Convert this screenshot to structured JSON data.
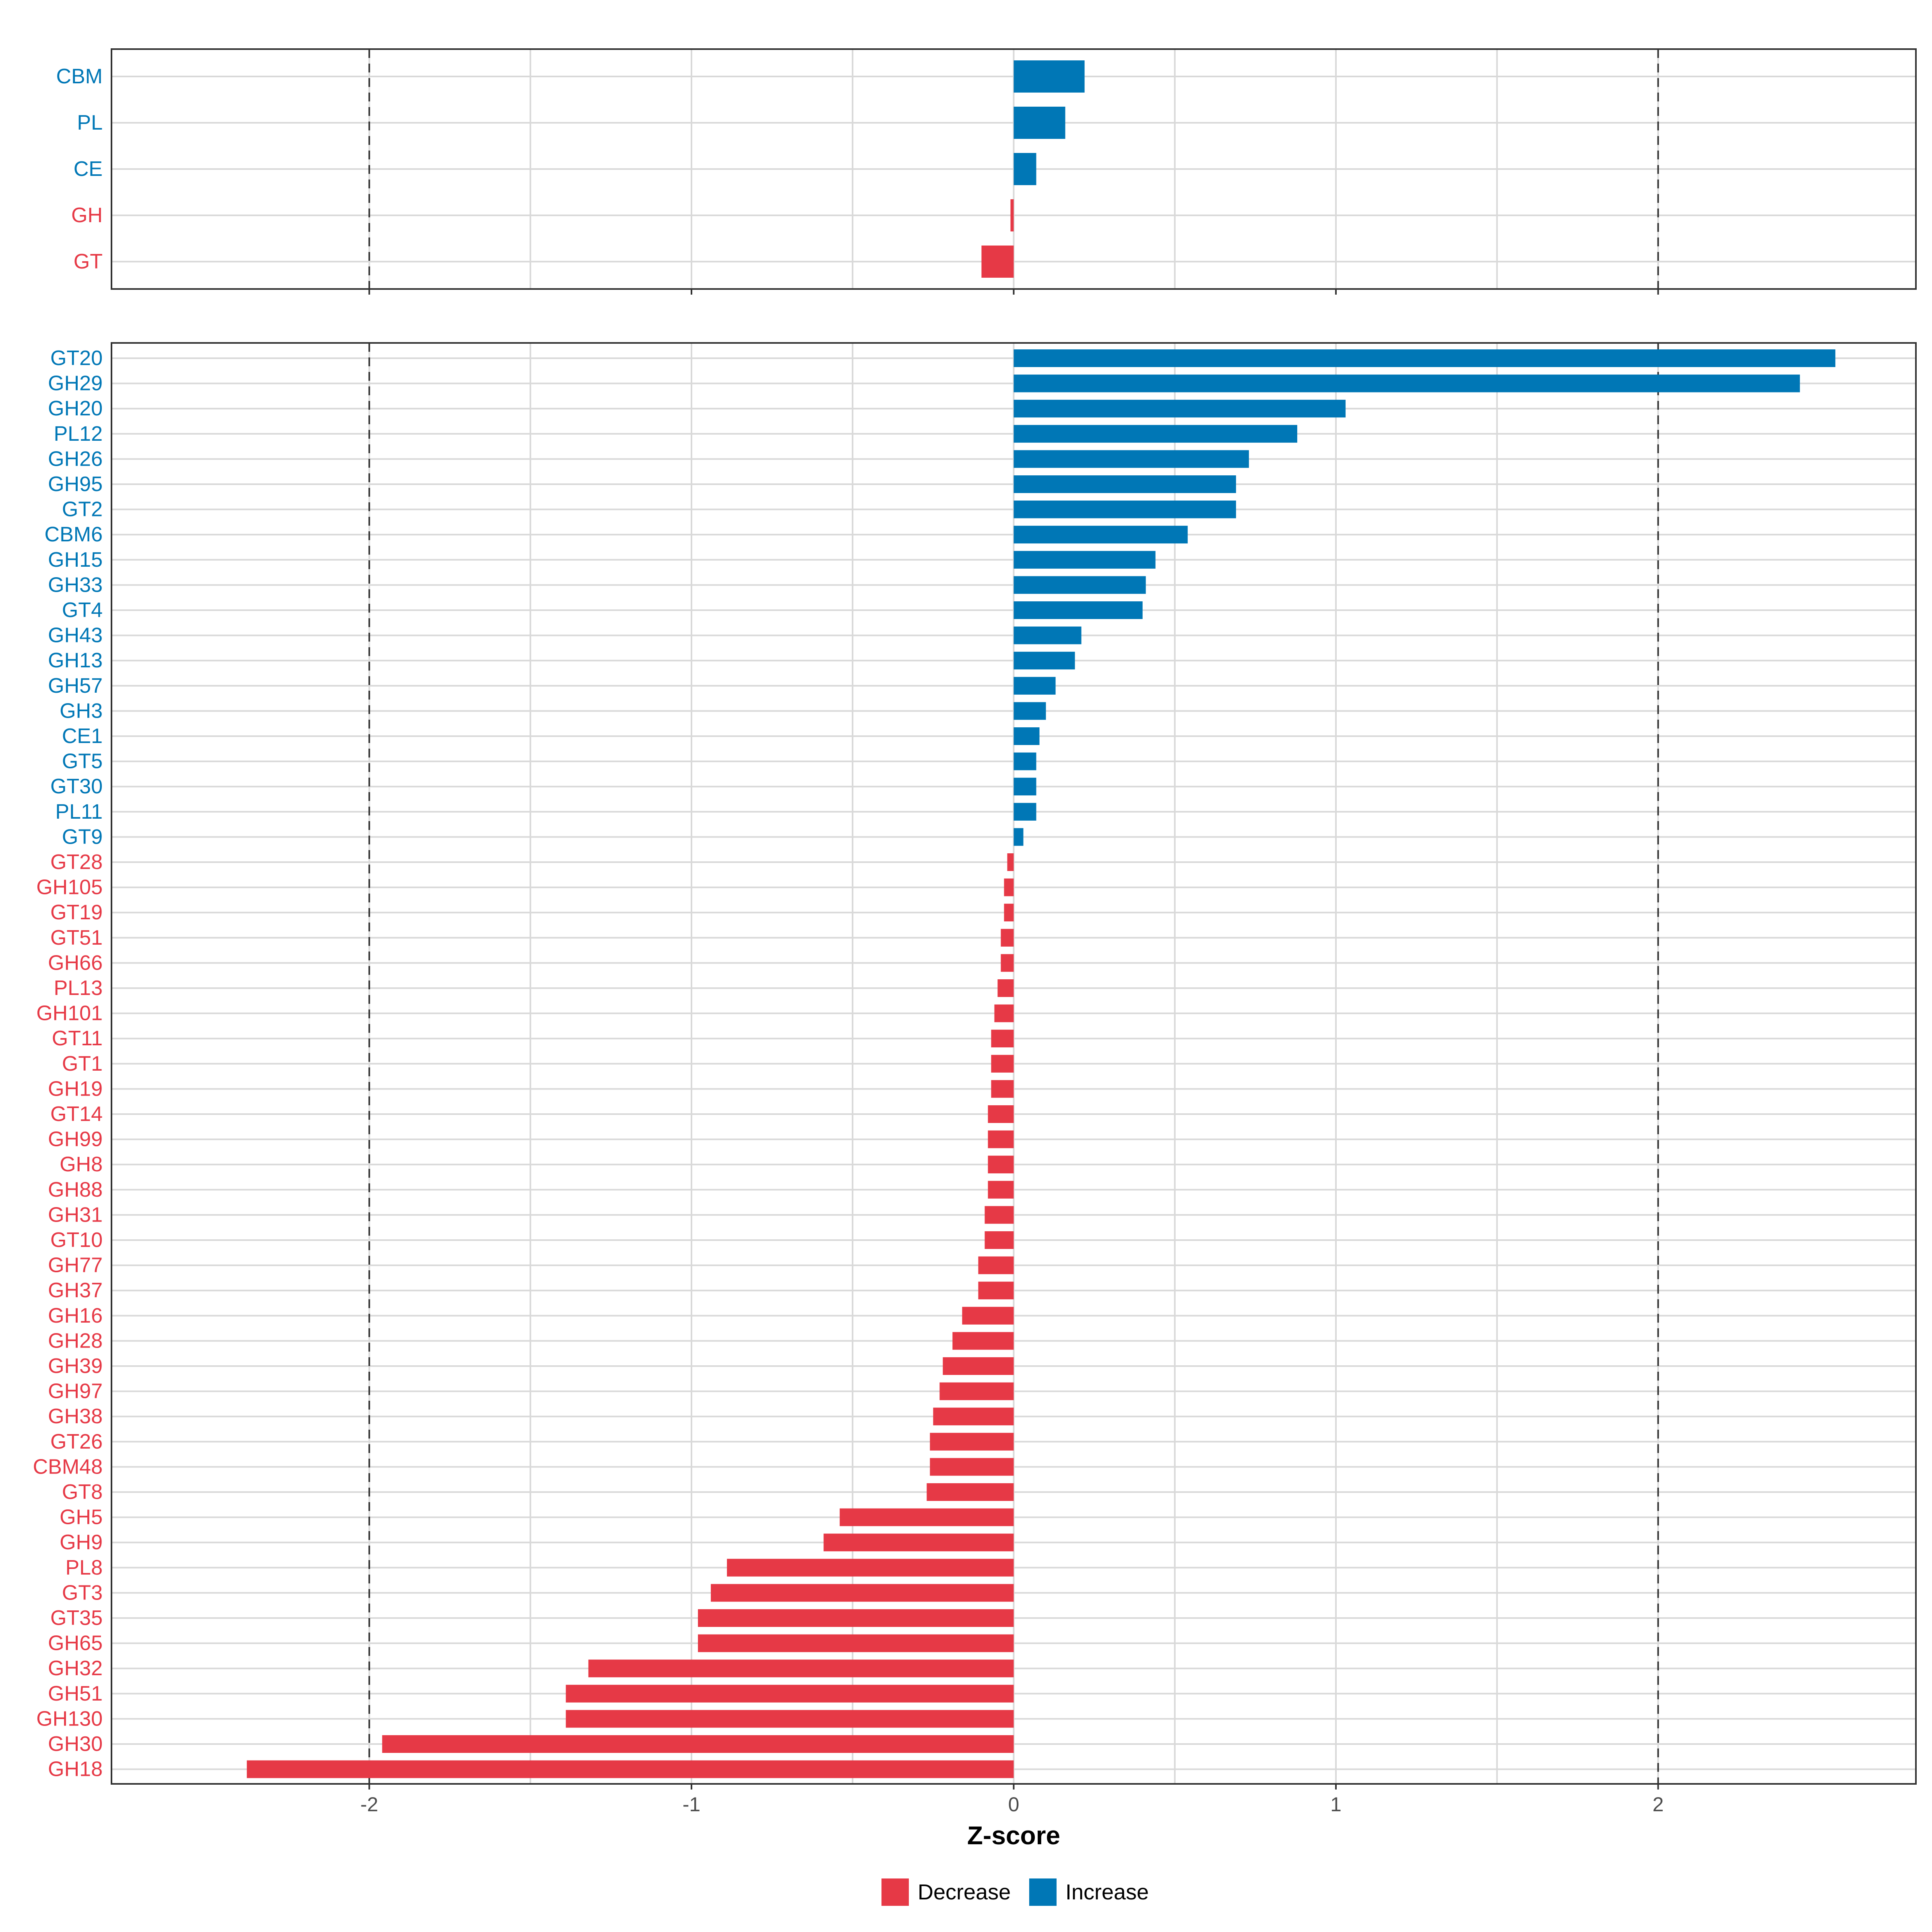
{
  "colors": {
    "decrease": "#E63946",
    "increase": "#0077B6",
    "grid": "#d9d9d9",
    "reference_line": "#333333",
    "panel_border": "#333333",
    "tick_text": "#4d4d4d"
  },
  "chart_data": [
    {
      "type": "bar",
      "orientation": "horizontal",
      "panel": "top",
      "categories": [
        "CBM",
        "PL",
        "CE",
        "GH",
        "GT"
      ],
      "values": [
        0.22,
        0.16,
        0.07,
        -0.01,
        -0.1
      ],
      "xlim": [
        -2.8,
        2.8
      ],
      "reference_lines": [
        -2,
        2
      ],
      "grid": true
    },
    {
      "type": "bar",
      "orientation": "horizontal",
      "panel": "bottom",
      "categories": [
        "GT20",
        "GH29",
        "GH20",
        "PL12",
        "GH26",
        "GH95",
        "GT2",
        "CBM6",
        "GH15",
        "GH33",
        "GT4",
        "GH43",
        "GH13",
        "GH57",
        "GH3",
        "CE1",
        "GT5",
        "GT30",
        "PL11",
        "GT9",
        "GT28",
        "GH105",
        "GT19",
        "GT51",
        "GH66",
        "PL13",
        "GH101",
        "GT11",
        "GT1",
        "GH19",
        "GT14",
        "GH99",
        "GH8",
        "GH88",
        "GH31",
        "GT10",
        "GH77",
        "GH37",
        "GH16",
        "GH28",
        "GH39",
        "GH97",
        "GH38",
        "GT26",
        "CBM48",
        "GT8",
        "GH5",
        "GH9",
        "PL8",
        "GT3",
        "GT35",
        "GH65",
        "GH32",
        "GH51",
        "GH130",
        "GH30",
        "GH18"
      ],
      "values": [
        2.55,
        2.44,
        1.03,
        0.88,
        0.73,
        0.69,
        0.69,
        0.54,
        0.44,
        0.41,
        0.4,
        0.21,
        0.19,
        0.13,
        0.1,
        0.08,
        0.07,
        0.07,
        0.07,
        0.03,
        -0.02,
        -0.03,
        -0.03,
        -0.04,
        -0.04,
        -0.05,
        -0.06,
        -0.07,
        -0.07,
        -0.07,
        -0.08,
        -0.08,
        -0.08,
        -0.08,
        -0.09,
        -0.09,
        -0.11,
        -0.11,
        -0.16,
        -0.19,
        -0.22,
        -0.23,
        -0.25,
        -0.26,
        -0.26,
        -0.27,
        -0.54,
        -0.59,
        -0.89,
        -0.94,
        -0.98,
        -0.98,
        -1.32,
        -1.39,
        -1.39,
        -1.96,
        -2.38
      ],
      "xlim": [
        -2.8,
        2.8
      ],
      "xticks": [
        -2,
        -1,
        0,
        1,
        2
      ],
      "xtick_labels": [
        "-2",
        "-1",
        "0",
        "1",
        "2"
      ],
      "reference_lines": [
        -2,
        2
      ],
      "grid": true
    }
  ],
  "xlabel": "Z-score",
  "legend": {
    "position": "bottom",
    "items": [
      {
        "label": "Decrease",
        "color_key": "decrease"
      },
      {
        "label": "Increase",
        "color_key": "increase"
      }
    ]
  }
}
